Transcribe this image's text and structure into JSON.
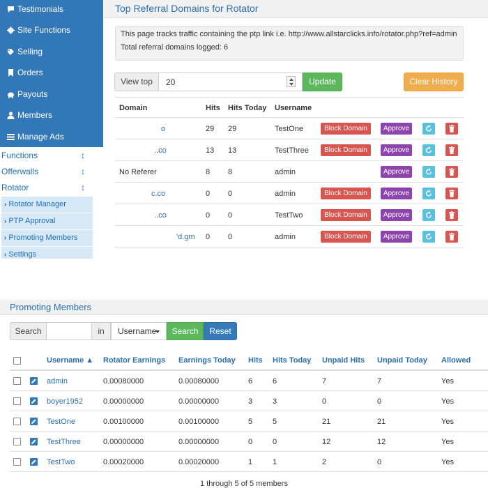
{
  "sidebar": {
    "main_items": [
      {
        "label": "Testimonials",
        "icon": "comment-icon"
      },
      {
        "label": "Site Functions",
        "icon": "gear-icon"
      },
      {
        "label": "Selling",
        "icon": "tag-icon"
      },
      {
        "label": "Orders",
        "icon": "bookmark-icon"
      },
      {
        "label": "Payouts",
        "icon": "piggy-bank-icon"
      },
      {
        "label": "Members",
        "icon": "user-icon"
      },
      {
        "label": "Manage Ads",
        "icon": "list-icon"
      }
    ],
    "groups": [
      {
        "label": "Functions",
        "arrow": "↕"
      },
      {
        "label": "Offerwalls",
        "arrow": "↕"
      },
      {
        "label": "Rotator",
        "arrow": "↕"
      }
    ],
    "sub_items": [
      {
        "label": "Rotator Manager"
      },
      {
        "label": "PTP Approval"
      },
      {
        "label": "Promoting Members"
      },
      {
        "label": "Settings"
      }
    ]
  },
  "referral": {
    "title": "Top Referral Domains for Rotator",
    "info_line1": "This page tracks traffic containing the ptp link i.e. http://www.allstarclicks.info/rotator.php?ref=admin",
    "info_line2": "Total referral domains logged: 6",
    "view_top_label": "View top",
    "view_top_value": "20",
    "update_label": "Update",
    "clear_label": "Clear History",
    "columns": {
      "domain": "Domain",
      "hits": "Hits",
      "hits_today": "Hits Today",
      "username": "Username"
    },
    "block_label": "Block Domain",
    "approve_label": "Approve",
    "rows": [
      {
        "domain": "o",
        "hits": "29",
        "hits_today": "29",
        "username": "TestOne",
        "block": true,
        "linked": true
      },
      {
        "domain": "..co",
        "hits": "13",
        "hits_today": "13",
        "username": "TestThree",
        "block": true,
        "linked": true
      },
      {
        "domain": "No Referer",
        "hits": "8",
        "hits_today": "8",
        "username": "admin",
        "block": false,
        "linked": false
      },
      {
        "domain": "c.co",
        "hits": "0",
        "hits_today": "0",
        "username": "admin",
        "block": true,
        "linked": true
      },
      {
        "domain": "..co",
        "hits": "0",
        "hits_today": "0",
        "username": "TestTwo",
        "block": true,
        "linked": true
      },
      {
        "domain": "'d.gm",
        "hits": "0",
        "hits_today": "0",
        "username": "admin",
        "block": true,
        "linked": true
      }
    ]
  },
  "promoting": {
    "title": "Promoting Members",
    "search_label": "Search",
    "search_value": "",
    "in_label": "in",
    "field_selected": "Username",
    "search_button": "Search",
    "reset_button": "Reset",
    "columns": {
      "username": "Username ▲",
      "rotator_earnings": "Rotator Earnings",
      "earnings_today": "Earnings Today",
      "hits": "Hits",
      "hits_today": "Hits Today",
      "unpaid_hits": "Unpaid Hits",
      "unpaid_today": "Unpaid Today",
      "allowed": "Allowed"
    },
    "rows": [
      {
        "username": "admin",
        "rotator_earnings": "0.00080000",
        "earnings_today": "0.00080000",
        "hits": "6",
        "hits_today": "6",
        "unpaid_hits": "7",
        "unpaid_today": "7",
        "allowed": "Yes"
      },
      {
        "username": "boyer1952",
        "rotator_earnings": "0.00000000",
        "earnings_today": "0.00000000",
        "hits": "3",
        "hits_today": "3",
        "unpaid_hits": "0",
        "unpaid_today": "0",
        "allowed": "Yes"
      },
      {
        "username": "TestOne",
        "rotator_earnings": "0.00100000",
        "earnings_today": "0.00100000",
        "hits": "5",
        "hits_today": "5",
        "unpaid_hits": "21",
        "unpaid_today": "21",
        "allowed": "Yes"
      },
      {
        "username": "TestThree",
        "rotator_earnings": "0.00000000",
        "earnings_today": "0.00000000",
        "hits": "0",
        "hits_today": "0",
        "unpaid_hits": "12",
        "unpaid_today": "12",
        "allowed": "Yes"
      },
      {
        "username": "TestTwo",
        "rotator_earnings": "0.00020000",
        "earnings_today": "0.00020000",
        "hits": "1",
        "hits_today": "1",
        "unpaid_hits": "2",
        "unpaid_today": "0",
        "allowed": "Yes"
      }
    ],
    "footer": "1 through 5 of 5 members"
  }
}
